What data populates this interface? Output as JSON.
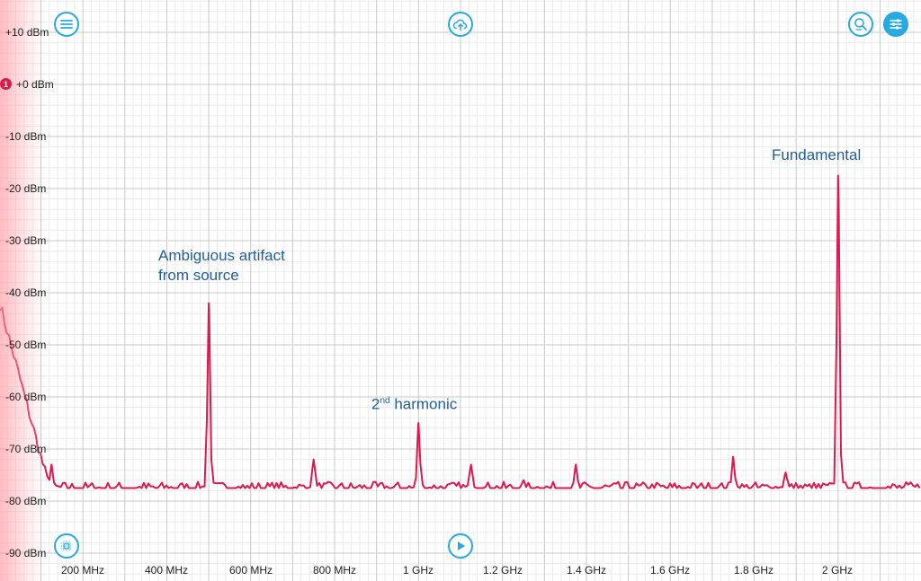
{
  "y_axis": {
    "ticks": [
      "+10 dBm",
      "+0 dBm",
      "-10 dBm",
      "-20 dBm",
      "-30 dBm",
      "-40 dBm",
      "-50 dBm",
      "-60 dBm",
      "-70 dBm",
      "-80 dBm",
      "-90 dBm"
    ]
  },
  "x_axis": {
    "ticks": [
      "200 MHz",
      "400 MHz",
      "600 MHz",
      "800 MHz",
      "1 GHz",
      "1.2 GHz",
      "1.4 GHz",
      "1.6 GHz",
      "1.8 GHz",
      "2 GHz"
    ]
  },
  "marker": {
    "label": "1",
    "color": "#e0184d"
  },
  "annotations": {
    "artifact_line1": "Ambiguous artifact",
    "artifact_line2": "from source",
    "harmonic_pre": "2",
    "harmonic_sup": "nd",
    "harmonic_post": " harmonic",
    "fundamental": "Fundamental"
  },
  "toolbar": {
    "menu_icon": "hamburger-menu-icon",
    "cloud_icon": "cloud-upload-icon",
    "zoom_icon": "magnifier-icon",
    "settings_icon": "sliders-icon",
    "crosshair_icon": "crosshair-grid-icon",
    "play_icon": "play-icon"
  },
  "colors": {
    "trace": "#e0184d",
    "accent": "#27a9e1",
    "annotation": "#1f5f9e",
    "grid_major": "#c9c9c9",
    "grid_minor": "#ececec"
  },
  "chart_data": {
    "type": "line",
    "xlim_mhz": [
      100,
      2200
    ],
    "ylim_dbm": [
      -92,
      12
    ],
    "noise_floor_dbm": -77.5,
    "peaks": [
      {
        "x_mhz": 125,
        "y_dbm": -73
      },
      {
        "x_mhz": 500,
        "y_dbm": -42
      },
      {
        "x_mhz": 750,
        "y_dbm": -72
      },
      {
        "x_mhz": 1000,
        "y_dbm": -65
      },
      {
        "x_mhz": 1125,
        "y_dbm": -73
      },
      {
        "x_mhz": 1250,
        "y_dbm": -76
      },
      {
        "x_mhz": 1375,
        "y_dbm": -73
      },
      {
        "x_mhz": 1750,
        "y_dbm": -71.5
      },
      {
        "x_mhz": 1875,
        "y_dbm": -74.5
      },
      {
        "x_mhz": 2000,
        "y_dbm": -17.5
      }
    ]
  }
}
